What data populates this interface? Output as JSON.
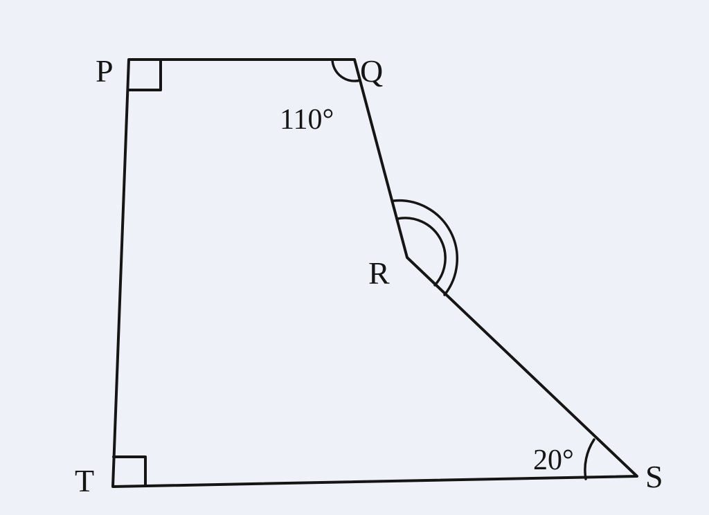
{
  "vertices": {
    "P": "P",
    "Q": "Q",
    "R": "R",
    "S": "S",
    "T": "T"
  },
  "angles": {
    "Q": "110°",
    "S": "20°"
  }
}
